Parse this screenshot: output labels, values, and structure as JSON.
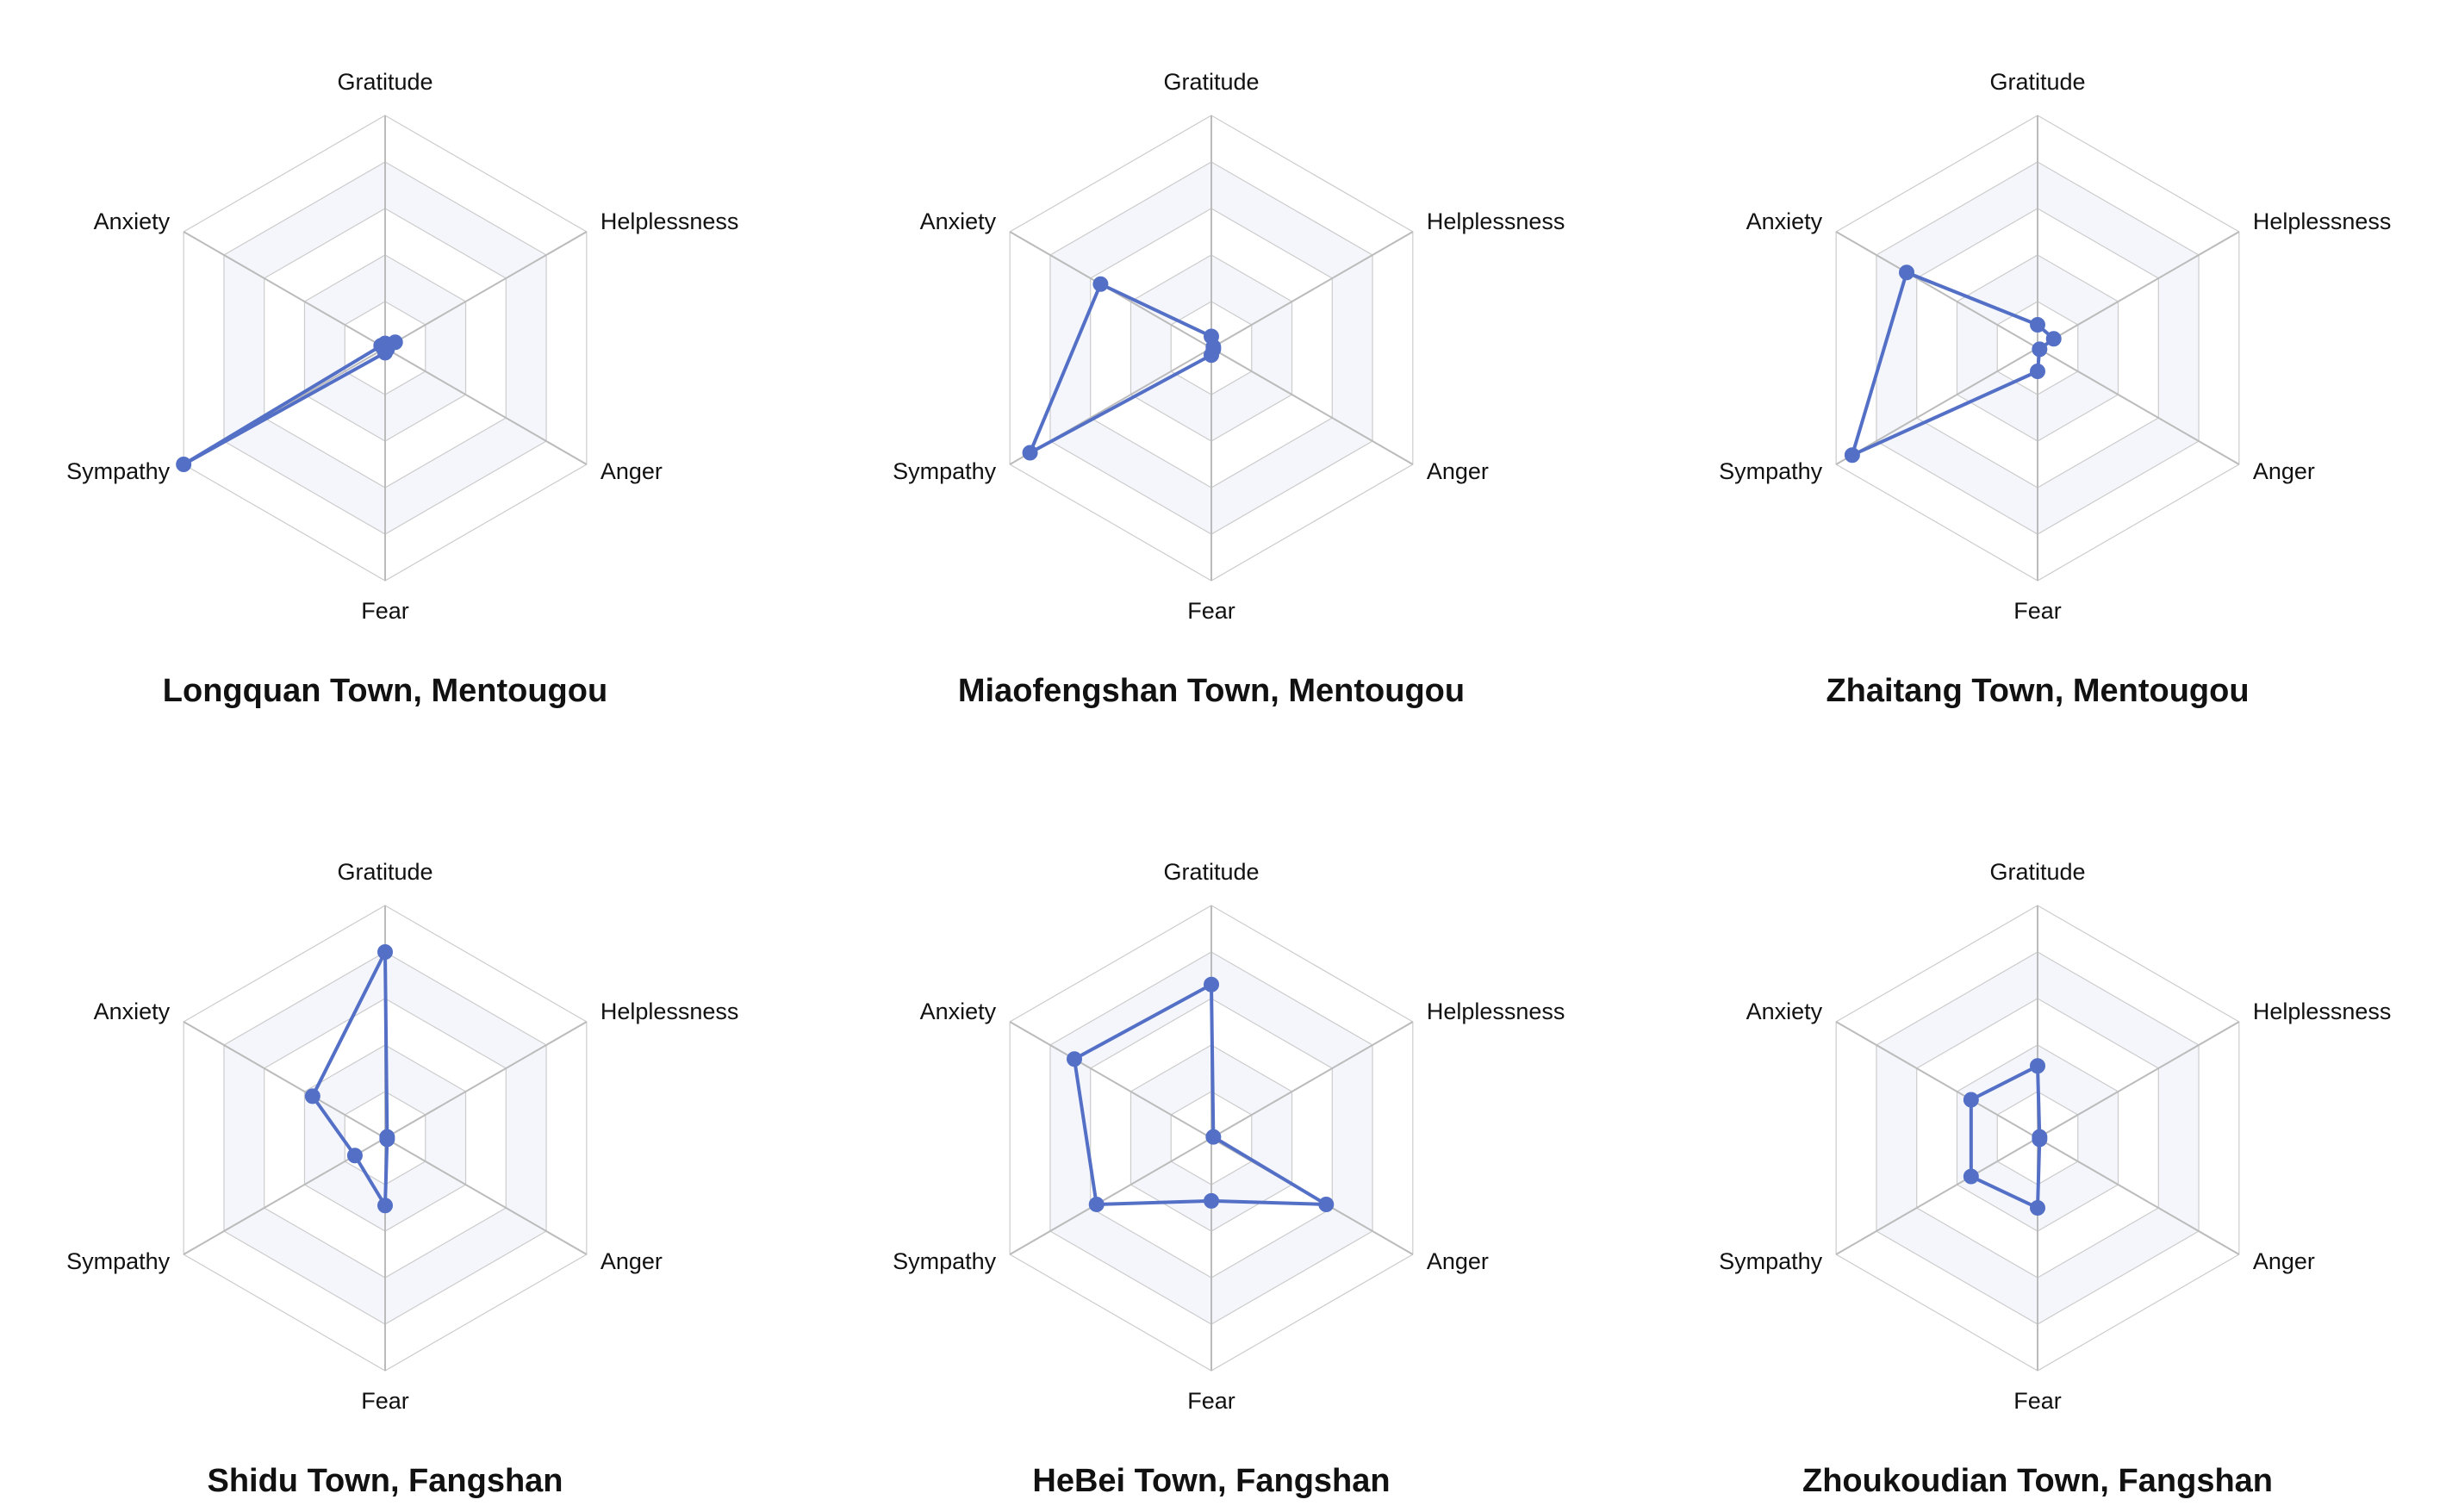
{
  "chart_data": [
    {
      "type": "radar",
      "title": "Longquan Town, Mentougou",
      "categories": [
        "Gratitude",
        "Helplessness",
        "Anger",
        "Fear",
        "Sympathy",
        "Anxiety"
      ],
      "values": [
        0.02,
        0.05,
        0.01,
        0.02,
        1.0,
        0.02
      ],
      "rlim": [
        0,
        1
      ]
    },
    {
      "type": "radar",
      "title": "Miaofengshan Town, Mentougou",
      "categories": [
        "Gratitude",
        "Helplessness",
        "Anger",
        "Fear",
        "Sympathy",
        "Anxiety"
      ],
      "values": [
        0.05,
        0.01,
        0.01,
        0.03,
        0.9,
        0.55
      ],
      "rlim": [
        0,
        1
      ]
    },
    {
      "type": "radar",
      "title": "Zhaitang Town, Mentougou",
      "categories": [
        "Gratitude",
        "Helplessness",
        "Anger",
        "Fear",
        "Sympathy",
        "Anxiety"
      ],
      "values": [
        0.1,
        0.08,
        0.01,
        0.1,
        0.92,
        0.65
      ],
      "rlim": [
        0,
        1
      ]
    },
    {
      "type": "radar",
      "title": "Shidu Town, Fangshan",
      "categories": [
        "Gratitude",
        "Helplessness",
        "Anger",
        "Fear",
        "Sympathy",
        "Anxiety"
      ],
      "values": [
        0.8,
        0.01,
        0.01,
        0.29,
        0.15,
        0.36
      ],
      "rlim": [
        0,
        1
      ]
    },
    {
      "type": "radar",
      "title": "HeBei Town, Fangshan",
      "categories": [
        "Gratitude",
        "Helplessness",
        "Anger",
        "Fear",
        "Sympathy",
        "Anxiety"
      ],
      "values": [
        0.66,
        0.01,
        0.57,
        0.27,
        0.57,
        0.68
      ],
      "rlim": [
        0,
        1
      ]
    },
    {
      "type": "radar",
      "title": "Zhoukoudian Town, Fangshan",
      "categories": [
        "Gratitude",
        "Helplessness",
        "Anger",
        "Fear",
        "Sympathy",
        "Anxiety"
      ],
      "values": [
        0.31,
        0.01,
        0.01,
        0.3,
        0.33,
        0.33
      ],
      "rlim": [
        0,
        1
      ]
    }
  ],
  "colors": {
    "series": "#5470c6",
    "grid_line": "#cccccc",
    "axis_line": "#bbbbbb",
    "band_fill": "rgba(210,219,238,0.25)",
    "text": "#111111"
  }
}
